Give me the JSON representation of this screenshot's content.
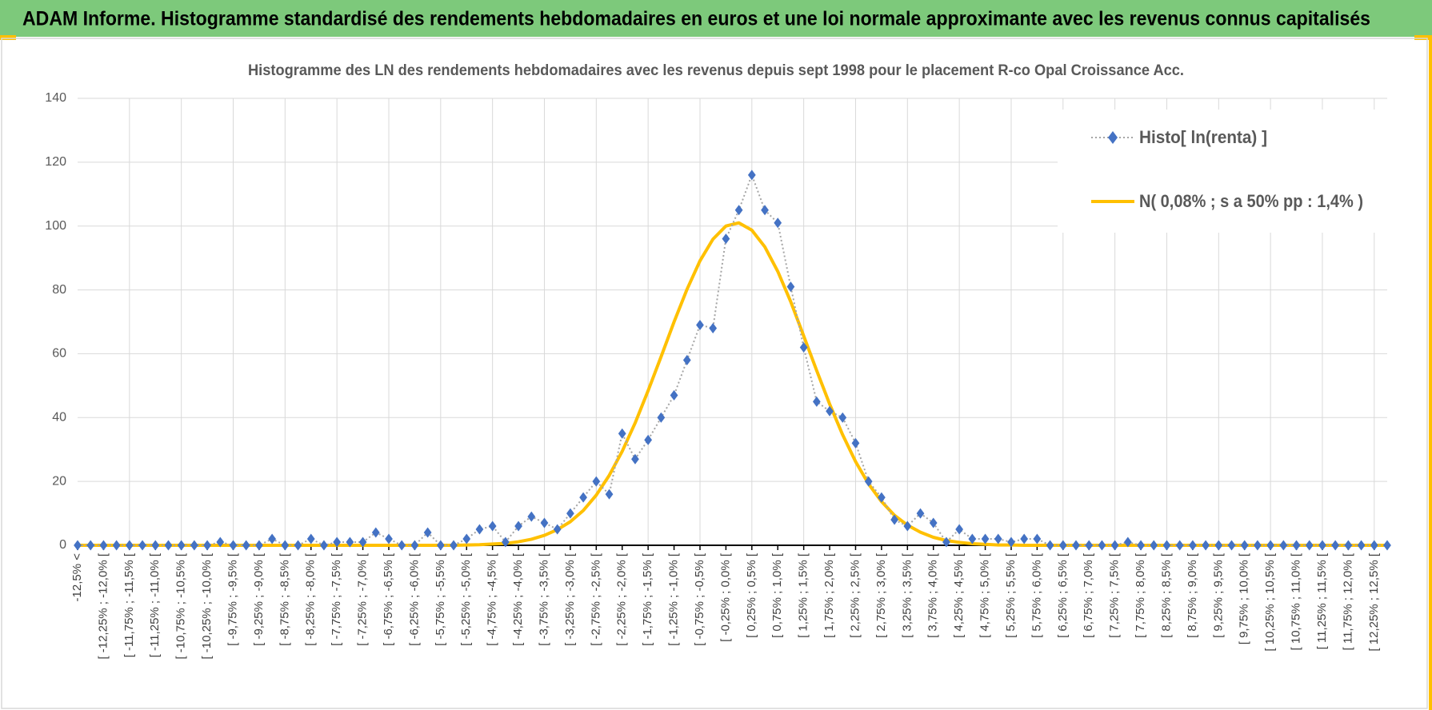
{
  "header": {
    "title": "ADAM Informe. Histogramme standardisé des rendements hebdomadaires en euros et une loi normale approximante avec les revenus connus capitalisés"
  },
  "chart_data": {
    "type": "line",
    "title": "Histogramme  des LN des rendements hebdomadaires avec les revenus depuis sept 1998 pour le placement R-co Opal Croissance Acc.",
    "categories": [
      "-12,5% <",
      null,
      "[ -12,25% ; -12,0% [",
      null,
      "[ -11,75% ; -11,5% [",
      null,
      "[ -11,25% ; -11,0% [",
      null,
      "[ -10,75% ; -10,5% [",
      null,
      "[ -10,25% ; -10,0% [",
      null,
      "[ -9,75% ; -9,5% [",
      null,
      "[ -9,25% ; -9,0% [",
      null,
      "[ -8,75% ; -8,5% [",
      null,
      "[ -8,25% ; -8,0% [",
      null,
      "[ -7,75% ; -7,5% [",
      null,
      "[ -7,25% ; -7,0% [",
      null,
      "[ -6,75% ; -6,5% [",
      null,
      "[ -6,25% ; -6,0% [",
      null,
      "[ -5,75% ; -5,5% [",
      null,
      "[ -5,25% ; -5,0% [",
      null,
      "[ -4,75% ; -4,5% [",
      null,
      "[ -4,25% ; -4,0% [",
      null,
      "[ -3,75% ; -3,5% [",
      null,
      "[ -3,25% ; -3,0% [",
      null,
      "[ -2,75% ; -2,5% [",
      null,
      "[ -2,25% ; -2,0% [",
      null,
      "[ -1,75% ; -1,5% [",
      null,
      "[ -1,25% ; -1,0% [",
      null,
      "[ -0,75% ; -0,5% [",
      null,
      "[ -0,25% ; 0,0% [",
      null,
      "[ 0,25% ; 0,5% [",
      null,
      "[ 0,75% ; 1,0% [",
      null,
      "[ 1,25% ; 1,5% [",
      null,
      "[ 1,75% ; 2,0% [",
      null,
      "[ 2,25% ; 2,5% [",
      null,
      "[ 2,75% ; 3,0% [",
      null,
      "[ 3,25% ; 3,5% [",
      null,
      "[ 3,75% ; 4,0% [",
      null,
      "[ 4,25% ; 4,5% [",
      null,
      "[ 4,75% ; 5,0% [",
      null,
      "[ 5,25% ; 5,5% [",
      null,
      "[ 5,75% ; 6,0% [",
      null,
      "[ 6,25% ; 6,5% [",
      null,
      "[ 6,75% ; 7,0% [",
      null,
      "[ 7,25% ; 7,5% [",
      null,
      "[ 7,75% ; 8,0% [",
      null,
      "[ 8,25% ; 8,5% [",
      null,
      "[ 8,75% ; 9,0% [",
      null,
      "[ 9,25% ; 9,5% [",
      null,
      "[ 9,75% ; 10,0% [",
      null,
      "[ 10,25% ; 10,5% [",
      null,
      "[ 10,75% ; 11,0% [",
      null,
      "[ 11,25% ; 11,5% [",
      null,
      "[ 11,75% ; 12,0% [",
      null,
      "[ 12,25% ; 12,5% [",
      null
    ],
    "series": [
      {
        "name": "Histo[ ln(renta) ]",
        "color": "#4472c4",
        "line_color": "#a5a5a5",
        "marker": "diamond",
        "dash": "dotted",
        "values": [
          0,
          0,
          0,
          0,
          0,
          0,
          0,
          0,
          0,
          0,
          0,
          1,
          0,
          0,
          0,
          2,
          0,
          0,
          2,
          0,
          1,
          1,
          1,
          4,
          2,
          0,
          0,
          4,
          0,
          0,
          2,
          5,
          6,
          1,
          6,
          9,
          7,
          5,
          10,
          15,
          20,
          16,
          35,
          27,
          33,
          40,
          47,
          58,
          69,
          68,
          96,
          105,
          116,
          105,
          101,
          81,
          62,
          45,
          42,
          40,
          32,
          20,
          15,
          8,
          6,
          10,
          7,
          1,
          5,
          2,
          2,
          2,
          1,
          2,
          2,
          0,
          0,
          0,
          0,
          0,
          0,
          1,
          0,
          0,
          0,
          0,
          0,
          0,
          0,
          0,
          0,
          0,
          0,
          0,
          0,
          0,
          0,
          0,
          0,
          0,
          0,
          0
        ]
      },
      {
        "name": "N( 0,08% ; s a 50% pp : 1,4% )",
        "color": "#ffc000",
        "marker": "none",
        "dash": "solid",
        "values": [
          0,
          0,
          0,
          0,
          0,
          0,
          0,
          0,
          0,
          0,
          0,
          0,
          0,
          0,
          0,
          0,
          0,
          0,
          0,
          0,
          0,
          0,
          0,
          0,
          0,
          0,
          0,
          0,
          0,
          0,
          0.1,
          0.2,
          0.4,
          0.6,
          1.1,
          1.9,
          3.1,
          4.9,
          7.4,
          10.9,
          15.7,
          21.9,
          29.4,
          38.3,
          48.4,
          59.1,
          70.0,
          80.2,
          89.1,
          95.9,
          100.0,
          101.0,
          98.7,
          93.5,
          85.8,
          76.3,
          65.6,
          54.7,
          44.2,
          34.6,
          26.2,
          19.2,
          13.7,
          9.4,
          6.3,
          4.1,
          2.5,
          1.5,
          0.9,
          0.5,
          0.3,
          0.1,
          0.1,
          0,
          0,
          0,
          0,
          0,
          0,
          0,
          0,
          0,
          0,
          0,
          0,
          0,
          0,
          0,
          0,
          0,
          0,
          0,
          0,
          0,
          0,
          0,
          0,
          0,
          0,
          0,
          0,
          0
        ]
      }
    ],
    "ylim": [
      0,
      140
    ],
    "yticks": [
      0,
      20,
      40,
      60,
      80,
      100,
      120,
      140
    ],
    "grid": true,
    "legend": "upper right"
  }
}
